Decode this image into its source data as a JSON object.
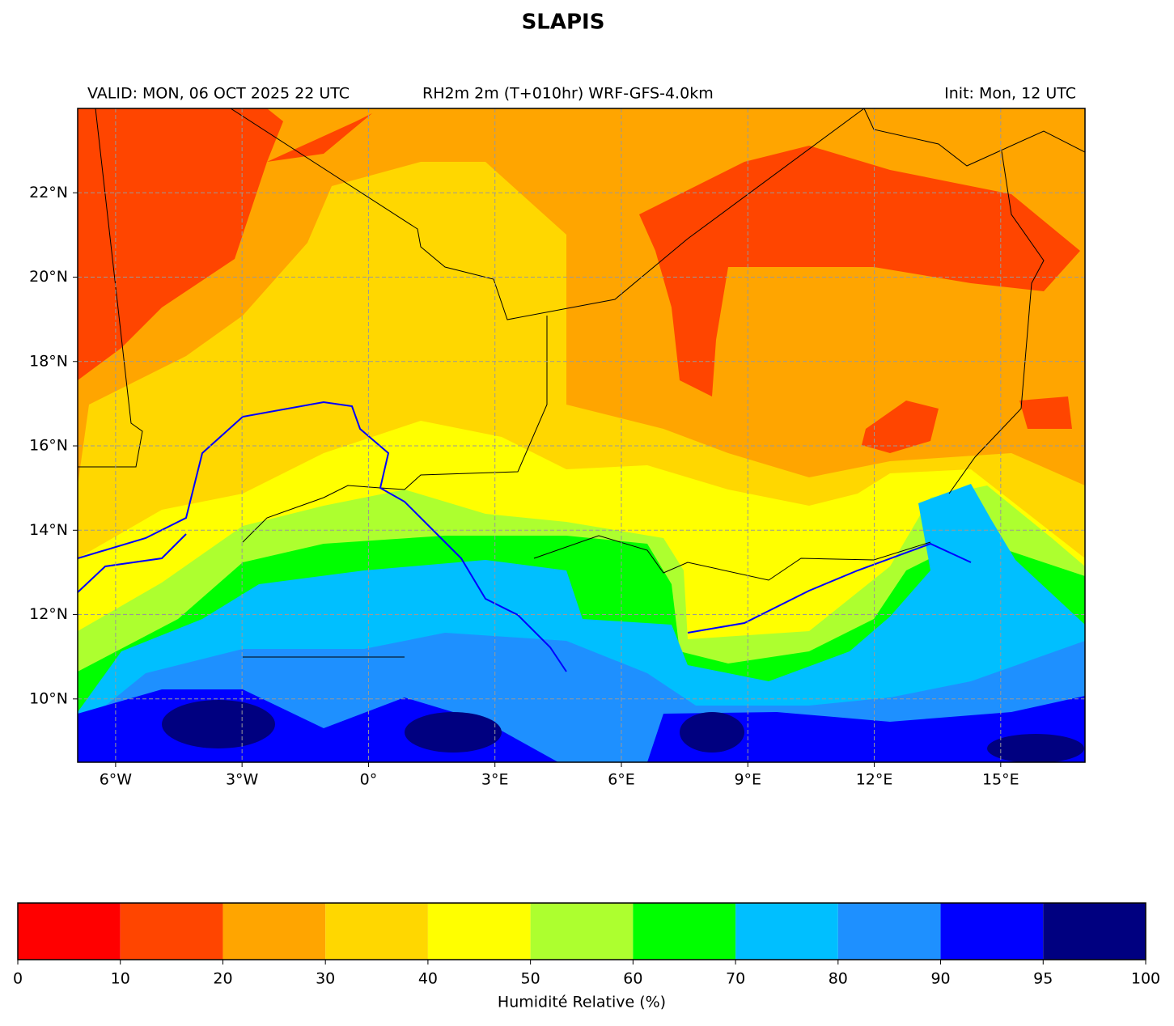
{
  "title": "SLAPIS",
  "header": {
    "valid": "VALID: MON, 06 OCT 2025 22 UTC",
    "field": "RH2m 2m (T+010hr) WRF-GFS-4.0km",
    "init": "Init: Mon, 12 UTC"
  },
  "map": {
    "xlim": [
      -6.9,
      17
    ],
    "ylim": [
      8.5,
      24
    ],
    "xticks": [
      {
        "value": -6,
        "label": "6°W"
      },
      {
        "value": -3,
        "label": "3°W"
      },
      {
        "value": 0,
        "label": "0°"
      },
      {
        "value": 3,
        "label": "3°E"
      },
      {
        "value": 6,
        "label": "6°E"
      },
      {
        "value": 9,
        "label": "9°E"
      },
      {
        "value": 12,
        "label": "12°E"
      },
      {
        "value": 15,
        "label": "15°E"
      }
    ],
    "yticks": [
      {
        "value": 10,
        "label": "10°N"
      },
      {
        "value": 12,
        "label": "12°N"
      },
      {
        "value": 14,
        "label": "14°N"
      },
      {
        "value": 16,
        "label": "16°N"
      },
      {
        "value": 18,
        "label": "18°N"
      },
      {
        "value": 20,
        "label": "20°N"
      },
      {
        "value": 22,
        "label": "22°N"
      }
    ],
    "grid": true
  },
  "colorbar": {
    "bounds": [
      0,
      10,
      20,
      30,
      40,
      50,
      60,
      70,
      80,
      90,
      95,
      100
    ],
    "colors": [
      "#ff0000",
      "#ff4500",
      "#ffa500",
      "#ffd700",
      "#ffff00",
      "#adff2f",
      "#00ff00",
      "#00bfff",
      "#1e90ff",
      "#0000ff",
      "#000080"
    ],
    "label": "Humidité Relative (%)"
  }
}
